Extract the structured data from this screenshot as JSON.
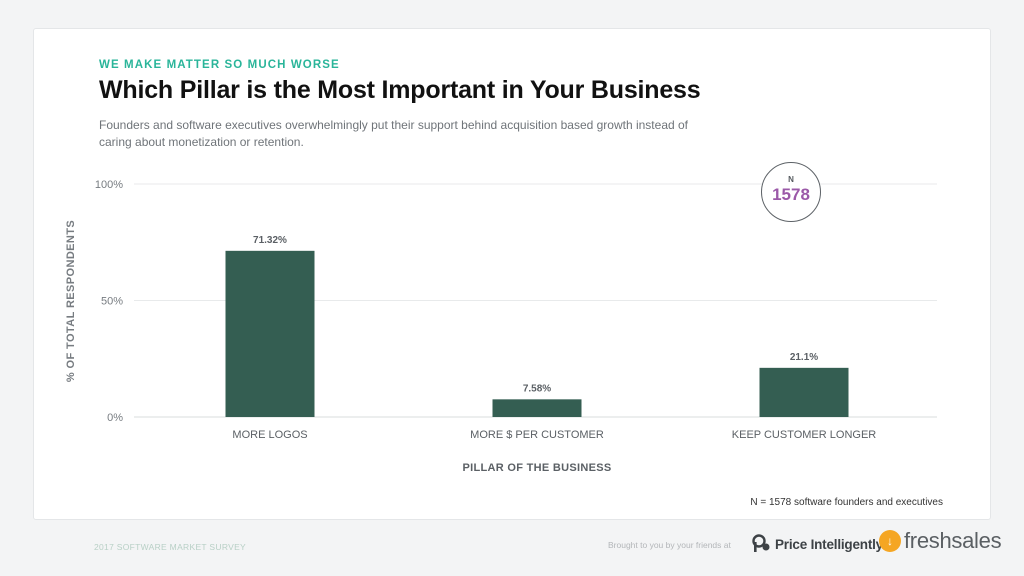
{
  "header": {
    "eyebrow": "WE MAKE MATTER SO MUCH WORSE",
    "title": "Which Pillar is the Most Important in Your Business",
    "subtitle": "Founders and software executives overwhelmingly put their support behind acquisition based growth instead of caring about monetization or retention."
  },
  "badge": {
    "label": "N",
    "value": "1578"
  },
  "footnote": "N = 1578 software founders and executives",
  "footer": {
    "survey_label": "2017 SOFTWARE MARKET SURVEY",
    "brought_by": "Brought to you by your friends at",
    "price_intelligently": "Price Intelligently",
    "freshsales": "freshsales"
  },
  "colors": {
    "bar": "#345e52",
    "accent": "#2ab59a",
    "badge_value": "#9b59a8",
    "freshsales_mark": "#f5a623"
  },
  "icons": [
    "price-intelligently-logo-icon",
    "freshsales-logo-icon"
  ],
  "chart_data": {
    "type": "bar",
    "categories": [
      "MORE LOGOS",
      "MORE $ PER CUSTOMER",
      "KEEP CUSTOMER LONGER"
    ],
    "values": [
      71.32,
      7.58,
      21.1
    ],
    "value_labels": [
      "71.32%",
      "7.58%",
      "21.1%"
    ],
    "ylim": [
      0,
      100
    ],
    "yticks": [
      0,
      50,
      100
    ],
    "ytick_labels": [
      "0%",
      "50%",
      "100%"
    ],
    "xlabel": "PILLAR OF THE BUSINESS",
    "ylabel": "% OF TOTAL RESPONDENTS",
    "grid": true
  }
}
